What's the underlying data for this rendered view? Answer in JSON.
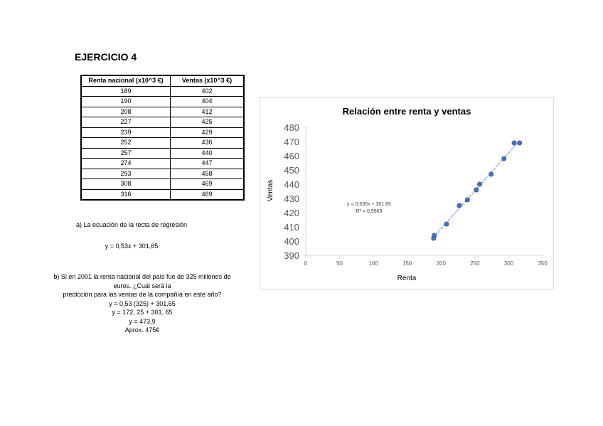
{
  "title": "EJERCICIO 4",
  "table": {
    "headers": [
      "Renta nacional (x10^3 €)",
      "Ventas (x10^3 €)"
    ],
    "rows": [
      [
        "189",
        "402"
      ],
      [
        "190",
        "404"
      ],
      [
        "208",
        "412"
      ],
      [
        "227",
        "425"
      ],
      [
        "239",
        "429"
      ],
      [
        "252",
        "436"
      ],
      [
        "257",
        "440"
      ],
      [
        "274",
        "447"
      ],
      [
        "293",
        "458"
      ],
      [
        "308",
        "469"
      ],
      [
        "316",
        "469"
      ]
    ]
  },
  "part_a": {
    "question": "a) La ecuación de la recta de regresión",
    "answer": "y = 0,53x + 301,65"
  },
  "part_b": {
    "lines": [
      "b) Si en 2001 la renta nacional del país fue de 325 millones de",
      "euros. ¿Cuál será la",
      "predicción para las ventas de la compañía en este año?",
      "y = 0,53 (325) + 301,65",
      "y = 172, 25 + 301, 65",
      "y = 473,9",
      "Aprox. 475€"
    ]
  },
  "chart_data": {
    "type": "scatter",
    "title": "Relación entre renta y ventas",
    "xlabel": "Renta",
    "ylabel": "Ventas",
    "xlim": [
      0,
      350
    ],
    "ylim": [
      390,
      480
    ],
    "xticks": [
      0,
      50,
      100,
      150,
      200,
      250,
      300,
      350
    ],
    "yticks": [
      390,
      400,
      410,
      420,
      430,
      440,
      450,
      460,
      470,
      480
    ],
    "x": [
      189,
      190,
      208,
      227,
      239,
      252,
      257,
      274,
      293,
      308,
      316
    ],
    "y": [
      402,
      404,
      412,
      425,
      429,
      436,
      440,
      447,
      458,
      469,
      469
    ],
    "trendline": {
      "slope": 0.535,
      "intercept": 301.65,
      "equation": "y = 0,535x + 301,65",
      "r2": "R² = 0,9969"
    },
    "marker_color": "#4472c4",
    "grid": false
  }
}
